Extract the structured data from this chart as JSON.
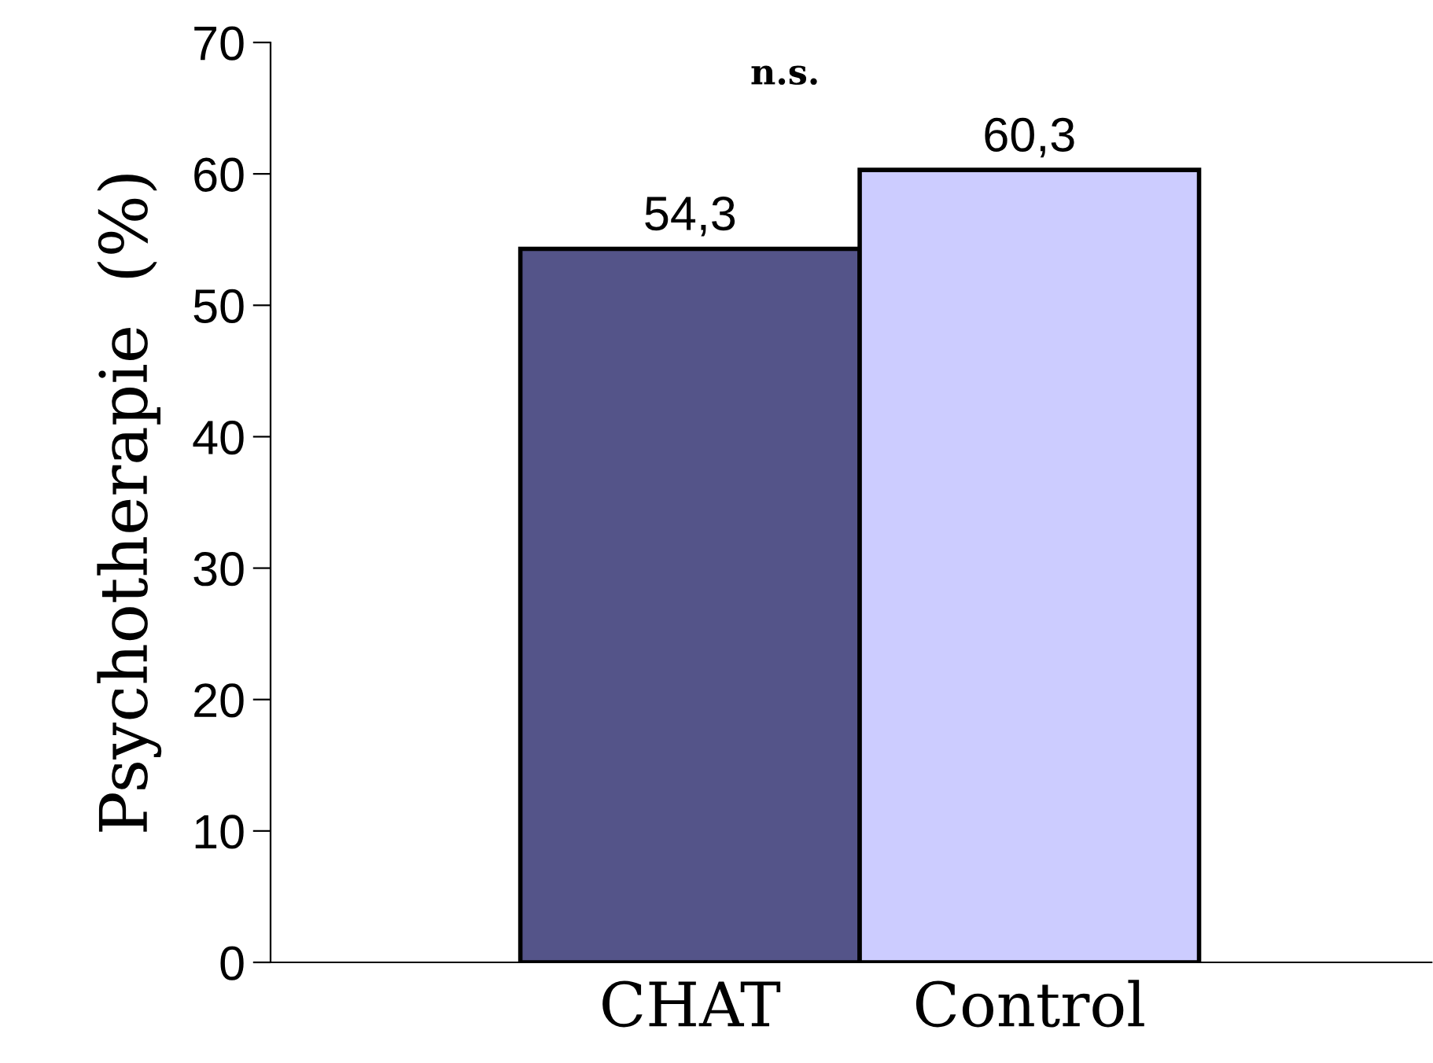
{
  "chart_data": {
    "type": "bar",
    "ylabel": "Psychotherapie  (%)",
    "categories": [
      "CHAT",
      "Control"
    ],
    "values": [
      54.3,
      60.3
    ],
    "colors": [
      "#545489",
      "#ccccff"
    ],
    "value_labels": [
      "54,3",
      "60,3"
    ],
    "ylim": [
      0,
      70
    ],
    "yticks": [
      0,
      10,
      20,
      30,
      40,
      50,
      60,
      70
    ],
    "grid": false,
    "legend": false,
    "annotations": [
      "n.s."
    ]
  }
}
